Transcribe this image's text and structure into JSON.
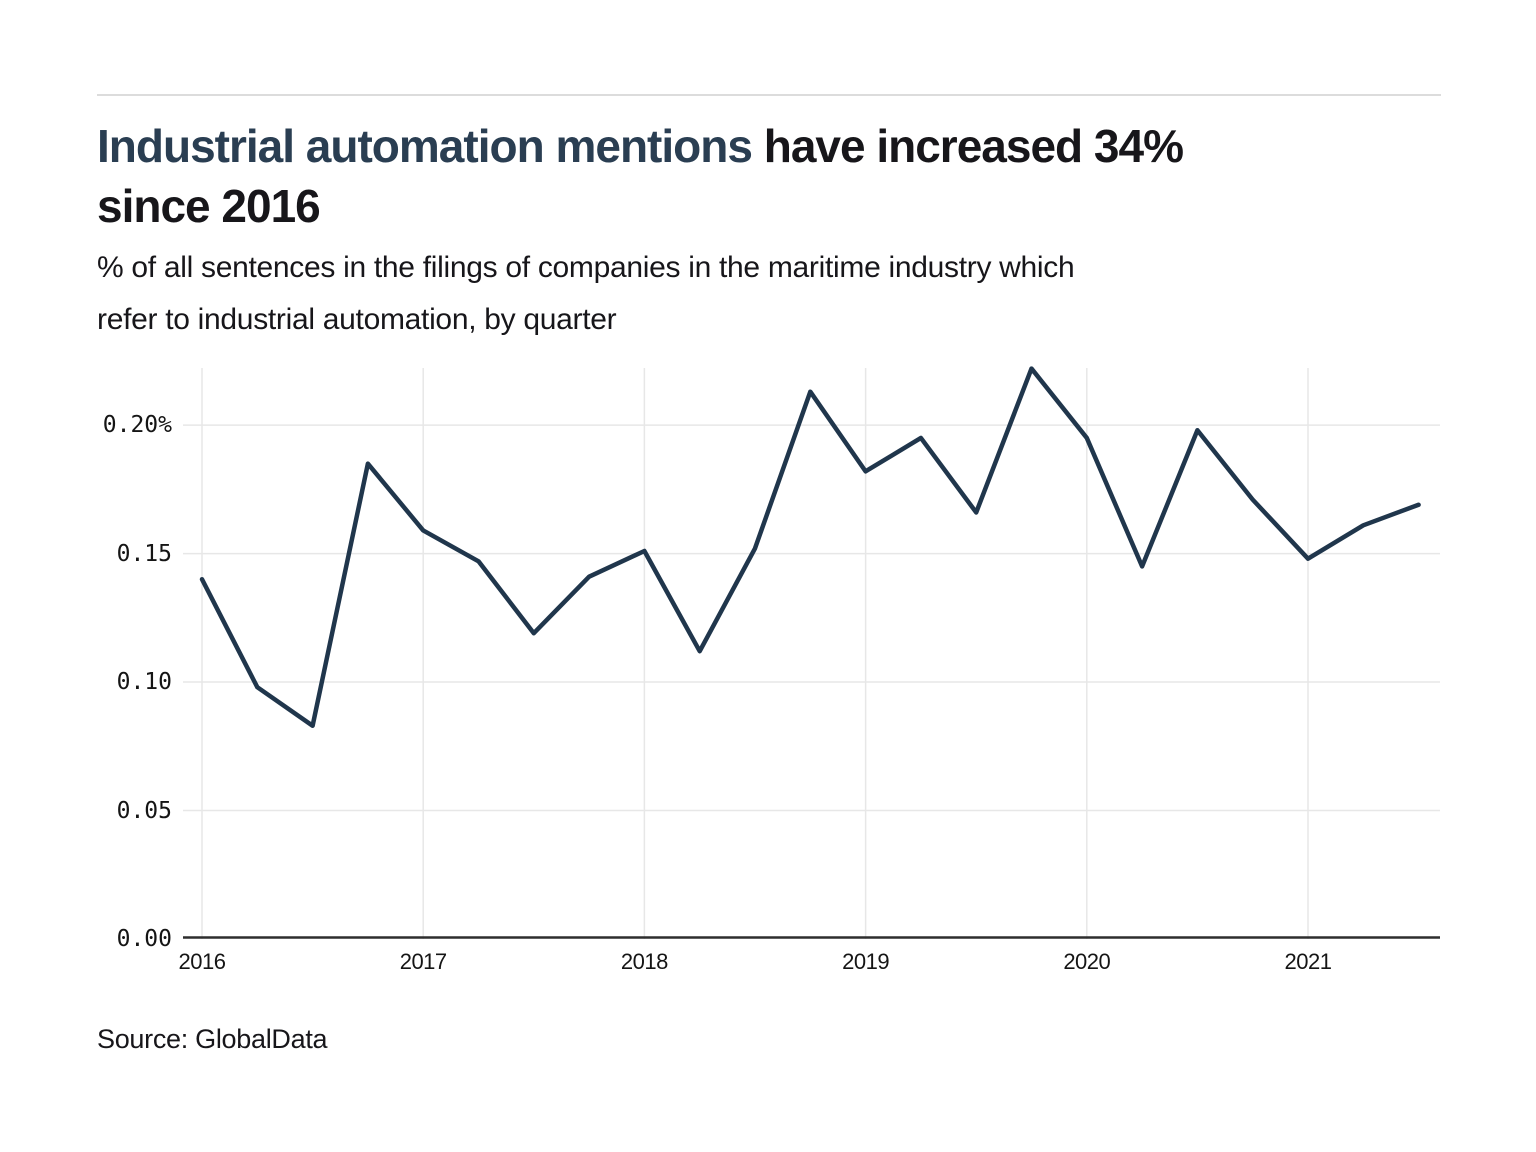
{
  "header": {
    "title_highlight": "Industrial automation mentions",
    "title_rest": " have increased 34%",
    "title_line2": "since 2016",
    "subtitle_line1": "% of all sentences in the filings of companies in the maritime industry which",
    "subtitle_line2": "refer to industrial automation, by quarter"
  },
  "chart_data": {
    "type": "line",
    "title": "Industrial automation mentions have increased 34% since 2016",
    "subtitle": "% of all sentences in the filings of companies in the maritime industry which refer to industrial automation, by quarter",
    "x": [
      "2016 Q1",
      "2016 Q2",
      "2016 Q3",
      "2016 Q4",
      "2017 Q1",
      "2017 Q2",
      "2017 Q3",
      "2017 Q4",
      "2018 Q1",
      "2018 Q2",
      "2018 Q3",
      "2018 Q4",
      "2019 Q1",
      "2019 Q2",
      "2019 Q3",
      "2019 Q4",
      "2020 Q1",
      "2020 Q2",
      "2020 Q3",
      "2020 Q4",
      "2021 Q1",
      "2021 Q2",
      "2021 Q3"
    ],
    "values": [
      0.14,
      0.098,
      0.083,
      0.185,
      0.159,
      0.147,
      0.119,
      0.141,
      0.151,
      0.112,
      0.152,
      0.213,
      0.182,
      0.195,
      0.166,
      0.222,
      0.195,
      0.145,
      0.198,
      0.171,
      0.148,
      0.161,
      0.169
    ],
    "ylim": [
      0,
      0.223
    ],
    "yticks": [
      {
        "value": 0.0,
        "label": "0.00"
      },
      {
        "value": 0.05,
        "label": "0.05"
      },
      {
        "value": 0.1,
        "label": "0.10"
      },
      {
        "value": 0.15,
        "label": "0.15"
      },
      {
        "value": 0.2,
        "label": "0.20%"
      }
    ],
    "xticks": [
      {
        "index": 0,
        "label": "2016"
      },
      {
        "index": 4,
        "label": "2017"
      },
      {
        "index": 8,
        "label": "2018"
      },
      {
        "index": 12,
        "label": "2019"
      },
      {
        "index": 16,
        "label": "2020"
      },
      {
        "index": 20,
        "label": "2021"
      }
    ],
    "grid": true,
    "legend": false,
    "line_color": "#20364c",
    "grid_color": "#e7e7e7",
    "axis_color": "#2e2e2e"
  },
  "footer": {
    "source": "Source: GlobalData"
  }
}
